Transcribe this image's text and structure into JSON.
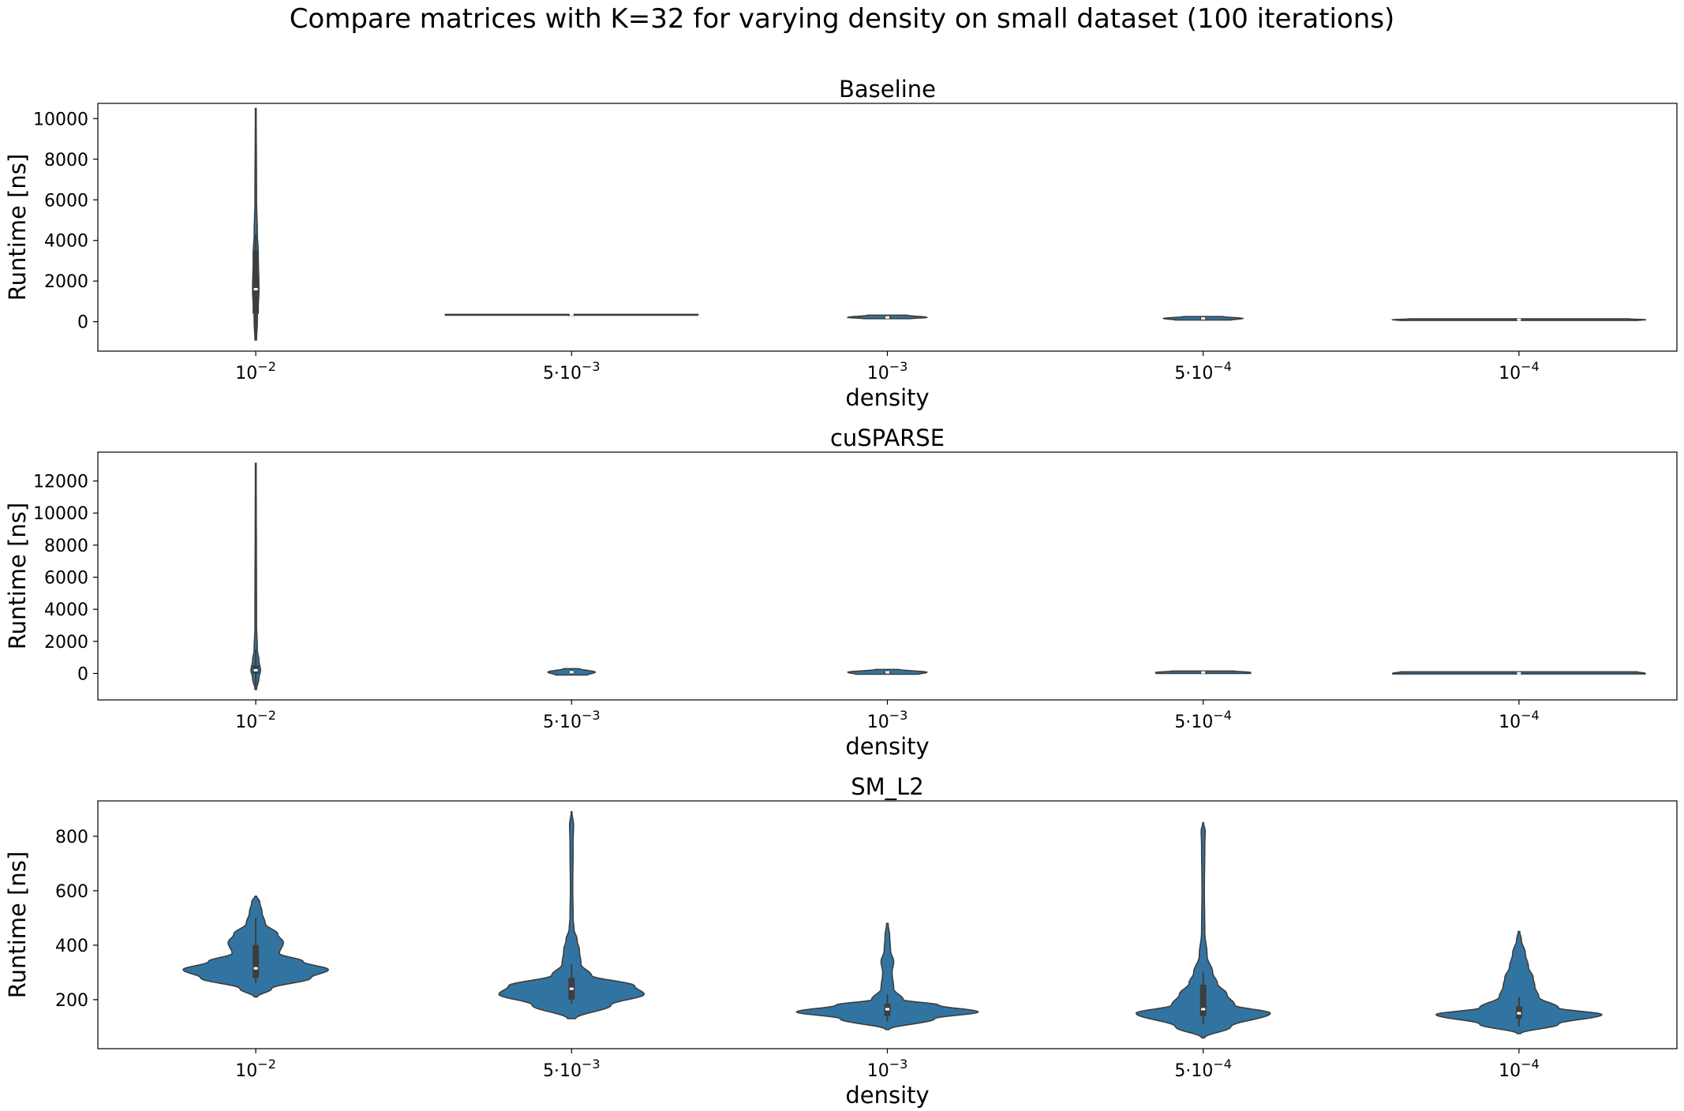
{
  "suptitle": "Compare matrices with K=32 for varying density on small dataset (100 iterations)",
  "chart_data": {
    "type": "violin",
    "xlabel": "density",
    "ylabel": "Runtime [ns]",
    "categories": [
      {
        "base": "10",
        "exp": "−2",
        "prefix": ""
      },
      {
        "base": "10",
        "exp": "−3",
        "prefix": "5⋅"
      },
      {
        "base": "10",
        "exp": "−3",
        "prefix": ""
      },
      {
        "base": "10",
        "exp": "−4",
        "prefix": "5⋅"
      },
      {
        "base": "10",
        "exp": "−4",
        "prefix": ""
      }
    ],
    "violin_color": "#3274a1",
    "panels": [
      {
        "title": "Baseline",
        "ylim": [
          -1450,
          10750
        ],
        "yticks": [
          0,
          2000,
          4000,
          6000,
          8000,
          10000
        ],
        "violins": [
          {
            "min": -900,
            "max": 10500,
            "q1": 400,
            "median": 1600,
            "q3": 3500,
            "whisker_low": -900,
            "whisker_high": 4300,
            "profile": [
              [
                -900,
                1
              ],
              [
                0,
                2
              ],
              [
                1600,
                4
              ],
              [
                3500,
                3
              ],
              [
                4300,
                2
              ],
              [
                6000,
                1
              ],
              [
                10500,
                0.5
              ]
            ]
          },
          {
            "min": 320,
            "max": 360,
            "q1": 335,
            "median": 345,
            "q3": 355,
            "whisker_low": 320,
            "whisker_high": 360,
            "profile": [
              [
                320,
                160
              ],
              [
                340,
                160
              ],
              [
                360,
                160
              ]
            ]
          },
          {
            "min": 150,
            "max": 320,
            "q1": 180,
            "median": 210,
            "q3": 250,
            "whisker_low": 150,
            "whisker_high": 320,
            "profile": [
              [
                150,
                30
              ],
              [
                210,
                50
              ],
              [
                320,
                25
              ]
            ]
          },
          {
            "min": 80,
            "max": 250,
            "q1": 120,
            "median": 160,
            "q3": 200,
            "whisker_low": 80,
            "whisker_high": 250,
            "profile": [
              [
                80,
                35
              ],
              [
                160,
                50
              ],
              [
                250,
                25
              ]
            ]
          },
          {
            "min": 60,
            "max": 140,
            "q1": 80,
            "median": 95,
            "q3": 110,
            "whisker_low": 60,
            "whisker_high": 140,
            "profile": [
              [
                60,
                150
              ],
              [
                95,
                160
              ],
              [
                140,
                140
              ]
            ]
          }
        ]
      },
      {
        "title": "cuSPARSE",
        "ylim": [
          -1650,
          13800
        ],
        "yticks": [
          0,
          2000,
          4000,
          6000,
          8000,
          10000,
          12000
        ],
        "violins": [
          {
            "min": -1000,
            "max": 13100,
            "q1": 0,
            "median": 200,
            "q3": 500,
            "whisker_low": -800,
            "whisker_high": 1500,
            "profile": [
              [
                -1000,
                1
              ],
              [
                -300,
                4
              ],
              [
                200,
                6
              ],
              [
                800,
                4
              ],
              [
                1500,
                2
              ],
              [
                3000,
                1
              ],
              [
                13100,
                0.5
              ]
            ]
          },
          {
            "min": -100,
            "max": 300,
            "q1": 30,
            "median": 80,
            "q3": 130,
            "whisker_low": -100,
            "whisker_high": 300,
            "profile": [
              [
                -100,
                20
              ],
              [
                80,
                30
              ],
              [
                300,
                10
              ]
            ]
          },
          {
            "min": -50,
            "max": 250,
            "q1": 30,
            "median": 70,
            "q3": 120,
            "whisker_low": -50,
            "whisker_high": 250,
            "profile": [
              [
                -50,
                40
              ],
              [
                70,
                50
              ],
              [
                250,
                15
              ]
            ]
          },
          {
            "min": 0,
            "max": 150,
            "q1": 30,
            "median": 60,
            "q3": 100,
            "whisker_low": 0,
            "whisker_high": 150,
            "profile": [
              [
                0,
                60
              ],
              [
                60,
                60
              ],
              [
                150,
                40
              ]
            ]
          },
          {
            "min": -30,
            "max": 100,
            "q1": 0,
            "median": 10,
            "q3": 30,
            "whisker_low": -30,
            "whisker_high": 100,
            "profile": [
              [
                -30,
                160
              ],
              [
                10,
                160
              ],
              [
                100,
                150
              ]
            ]
          }
        ]
      },
      {
        "title": "SM_L2",
        "ylim": [
          20,
          930
        ],
        "yticks": [
          200,
          400,
          600,
          800
        ],
        "violins": [
          {
            "min": 210,
            "max": 580,
            "q1": 280,
            "median": 315,
            "q3": 400,
            "whisker_low": 260,
            "whisker_high": 500,
            "profile": [
              [
                210,
                2
              ],
              [
                240,
                20
              ],
              [
                280,
                70
              ],
              [
                310,
                92
              ],
              [
                340,
                60
              ],
              [
                370,
                30
              ],
              [
                410,
                35
              ],
              [
                440,
                28
              ],
              [
                480,
                12
              ],
              [
                520,
                8
              ],
              [
                560,
                5
              ],
              [
                580,
                1
              ]
            ]
          },
          {
            "min": 130,
            "max": 890,
            "q1": 200,
            "median": 240,
            "q3": 280,
            "whisker_low": 185,
            "whisker_high": 330,
            "profile": [
              [
                130,
                5
              ],
              [
                180,
                50
              ],
              [
                220,
                92
              ],
              [
                250,
                80
              ],
              [
                290,
                25
              ],
              [
                330,
                12
              ],
              [
                380,
                10
              ],
              [
                420,
                7
              ],
              [
                460,
                3
              ],
              [
                500,
                2
              ],
              [
                600,
                1.5
              ],
              [
                780,
                2
              ],
              [
                840,
                2.5
              ],
              [
                890,
                0.5
              ]
            ]
          },
          {
            "min": 90,
            "max": 480,
            "q1": 140,
            "median": 165,
            "q3": 185,
            "whisker_low": 120,
            "whisker_high": 220,
            "profile": [
              [
                90,
                2
              ],
              [
                130,
                60
              ],
              [
                155,
                115
              ],
              [
                180,
                65
              ],
              [
                200,
                20
              ],
              [
                240,
                8
              ],
              [
                300,
                6
              ],
              [
                340,
                8
              ],
              [
                380,
                4
              ],
              [
                430,
                3
              ],
              [
                480,
                1
              ]
            ]
          },
          {
            "min": 60,
            "max": 850,
            "q1": 140,
            "median": 165,
            "q3": 255,
            "whisker_low": 110,
            "whisker_high": 300,
            "profile": [
              [
                60,
                2
              ],
              [
                100,
                35
              ],
              [
                150,
                85
              ],
              [
                180,
                40
              ],
              [
                220,
                30
              ],
              [
                260,
                18
              ],
              [
                300,
                12
              ],
              [
                360,
                5
              ],
              [
                450,
                2
              ],
              [
                600,
                1.5
              ],
              [
                760,
                2
              ],
              [
                820,
                2.5
              ],
              [
                850,
                0.5
              ]
            ]
          },
          {
            "min": 75,
            "max": 450,
            "q1": 130,
            "median": 150,
            "q3": 175,
            "whisker_low": 100,
            "whisker_high": 210,
            "profile": [
              [
                75,
                2
              ],
              [
                110,
                50
              ],
              [
                145,
                105
              ],
              [
                170,
                50
              ],
              [
                210,
                25
              ],
              [
                250,
                20
              ],
              [
                280,
                18
              ],
              [
                320,
                12
              ],
              [
                370,
                8
              ],
              [
                420,
                3
              ],
              [
                450,
                1
              ]
            ]
          }
        ]
      }
    ]
  }
}
